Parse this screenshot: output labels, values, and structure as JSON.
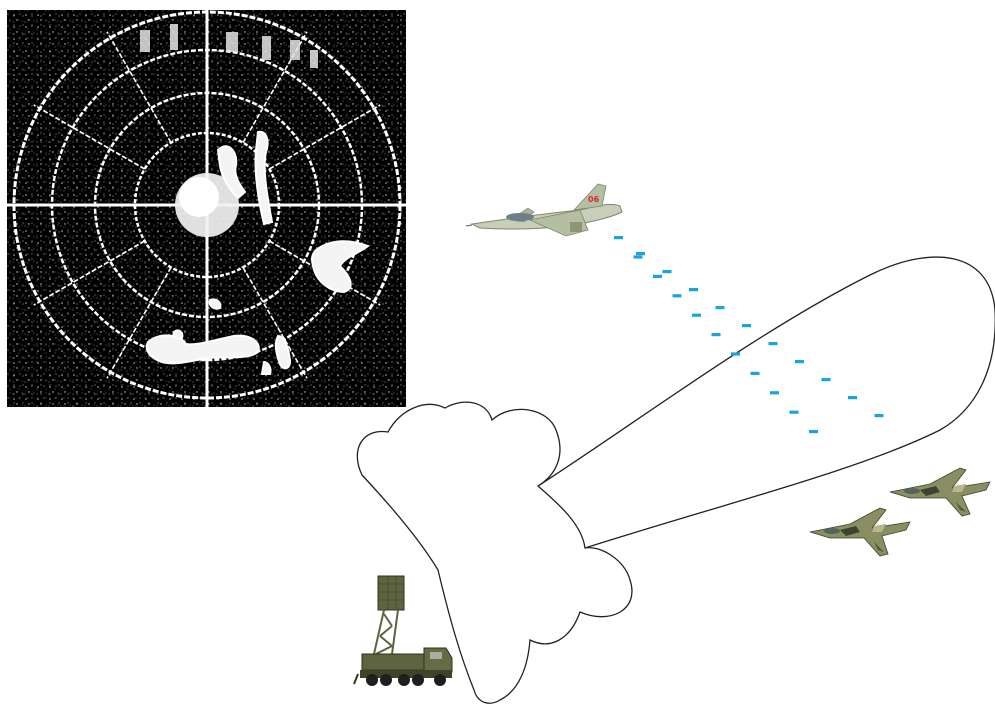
{
  "scene": {
    "background": "#ffffff",
    "radar_scope": {
      "icon": "radar-ppi-scope-icon",
      "screen_color": "#000000",
      "trace_color": "#ffffff"
    },
    "radar_beam": {
      "stroke_color": "#222222",
      "fill_color": "#ffffff"
    },
    "jamming_signal": {
      "dash_color": "#1aa3e0"
    },
    "jammer_aircraft": {
      "icon": "gripen-fighter-jet-icon",
      "tail_number": "06",
      "marking_color": "#d42a2a",
      "body_color": "#bfc8b0"
    },
    "target_aircraft": {
      "icon": "camouflaged-fighter-jet-icon",
      "camo_colors": [
        "#6f7a52",
        "#a9a37a",
        "#3d4430"
      ]
    },
    "radar_vehicle": {
      "icon": "mobile-radar-truck-icon",
      "body_color": "#5e6440"
    }
  }
}
